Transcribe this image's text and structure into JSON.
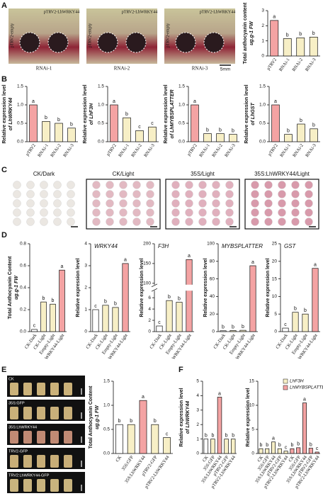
{
  "panel_letters": [
    "A",
    "B",
    "C",
    "D",
    "E",
    "F"
  ],
  "panel_a": {
    "left_label": "pTRV2-empty",
    "right_label": "pTRV2-LhWRKY44",
    "groups": [
      "RNAi-1",
      "RNAi-2",
      "RNAi-3"
    ],
    "scale": "5mm"
  },
  "panel_c": {
    "groups": [
      "CK/Dark",
      "CK/Light",
      "35S/Light",
      "35S:LhWRKY44/Light"
    ]
  },
  "panel_e": {
    "rows": [
      "CK",
      "35S:GFP",
      "35S:LhWRKY44",
      "TRV2-GFP",
      "TRV2:LhWRKY44-GFP"
    ]
  },
  "chart_data": [
    {
      "type": "bar",
      "ylabel": [
        "Total anthocyanin content",
        "ug.g-1 FW"
      ],
      "categories": [
        "pTRV2",
        "RNAi-1",
        "RNAi-2",
        "RNAi-3"
      ],
      "values": [
        2.35,
        1.15,
        1.2,
        1.25
      ],
      "letters": [
        "a",
        "b",
        "b",
        "b"
      ],
      "colors": [
        "#f4a3a3",
        "#f7efc6",
        "#f7efc6",
        "#f7efc6"
      ],
      "ylim": [
        0,
        3
      ],
      "yticks": [
        0,
        1,
        2,
        3
      ]
    },
    {
      "type": "bar",
      "ylabel": [
        "Relative expression level",
        "of LhWRKY44"
      ],
      "categories": [
        "pTRV2",
        "RNAi-1",
        "RNAi-2",
        "RNAi-3"
      ],
      "values": [
        1.0,
        0.55,
        0.5,
        0.37
      ],
      "letters": [
        "a",
        "b",
        "b",
        "b"
      ],
      "colors": [
        "#f4a3a3",
        "#f7efc6",
        "#f7efc6",
        "#f7efc6"
      ],
      "ylim": [
        0,
        1.5
      ],
      "yticks": [
        {
          "value": 0,
          "label": "0.0"
        },
        0.5,
        {
          "value": 1,
          "label": "1.0"
        },
        1.5
      ]
    },
    {
      "type": "bar",
      "ylabel": [
        "Relative expression level",
        "of LhF3H"
      ],
      "categories": [
        "pTRV2",
        "RNAi-1",
        "RNAi-2",
        "RNAi-3"
      ],
      "values": [
        1.0,
        0.65,
        0.3,
        0.4
      ],
      "letters": [
        "a",
        "b",
        "c",
        "c"
      ],
      "colors": [
        "#f4a3a3",
        "#f7efc6",
        "#f7efc6",
        "#f7efc6"
      ],
      "ylim": [
        0,
        1.5
      ],
      "yticks": [
        {
          "value": 0,
          "label": "0.0"
        },
        0.5,
        {
          "value": 1,
          "label": "1.0"
        },
        1.5
      ]
    },
    {
      "type": "bar",
      "ylabel": [
        "Relative expression level",
        "of LhMYBSPLATTER"
      ],
      "categories": [
        "pTRV2",
        "RNAi-1",
        "RNAi-2",
        "RNAi-3"
      ],
      "values": [
        1.0,
        0.22,
        0.22,
        0.2
      ],
      "letters": [
        "a",
        "b",
        "b",
        "b"
      ],
      "colors": [
        "#f4a3a3",
        "#f7efc6",
        "#f7efc6",
        "#f7efc6"
      ],
      "ylim": [
        0,
        1.5
      ],
      "yticks": [
        {
          "value": 0,
          "label": "0.0"
        },
        0.5,
        {
          "value": 1,
          "label": "1.0"
        },
        1.5
      ]
    },
    {
      "type": "bar",
      "ylabel": [
        "Relative expression level",
        "of LhGST"
      ],
      "categories": [
        "pTRV2",
        "RNAi-1",
        "RNAi-2",
        "RNAi-3"
      ],
      "values": [
        1.0,
        0.2,
        0.48,
        0.35
      ],
      "letters": [
        "a",
        "b",
        "b",
        "b"
      ],
      "colors": [
        "#f4a3a3",
        "#f7efc6",
        "#f7efc6",
        "#f7efc6"
      ],
      "ylim": [
        0,
        1.5
      ],
      "yticks": [
        {
          "value": 0,
          "label": "0.0"
        },
        0.5,
        {
          "value": 1,
          "label": "1.0"
        },
        1.5
      ]
    },
    {
      "type": "bar",
      "ylabel": [
        "Total Anthocyanin Content",
        "ug.g-1 FW"
      ],
      "categories": [
        "CK-Dark",
        "CK-Light",
        "Empty-Light",
        "WRKY44-Light"
      ],
      "values": [
        0.02,
        0.27,
        0.25,
        0.56
      ],
      "letters": [
        "c",
        "b",
        "b",
        "a"
      ],
      "colors": [
        "#ffffff",
        "#f7efc6",
        "#f7efc6",
        "#f4a3a3"
      ],
      "ylim": [
        0,
        0.8
      ],
      "yticks": [
        {
          "value": 0,
          "label": "0.0"
        },
        0.2,
        0.4,
        0.6,
        0.8
      ]
    },
    {
      "type": "bar",
      "title": "WRKY44",
      "ylabel": [
        "Relative expression level"
      ],
      "categories": [
        "CK-Dark",
        "CK-Light",
        "Empty-Light",
        "WRKY44-Light"
      ],
      "values": [
        1.0,
        1.2,
        1.1,
        3.1
      ],
      "letters": [
        "c",
        "b",
        "b",
        "a"
      ],
      "colors": [
        "#ffffff",
        "#f7efc6",
        "#f7efc6",
        "#f4a3a3"
      ],
      "ylim": [
        0,
        4
      ],
      "yticks": [
        0,
        1,
        2,
        3,
        4
      ]
    },
    {
      "type": "bar",
      "title": "F3H",
      "ylabel": [
        "Relative expression level"
      ],
      "categories": [
        "CK-Dark",
        "CK-Light",
        "Empty-Light",
        "WRKY44-Light"
      ],
      "values": [
        1.0,
        5.5,
        5.2,
        160
      ],
      "letters": [
        "c",
        "b",
        "b",
        "a"
      ],
      "colors": [
        "#ffffff",
        "#f7efc6",
        "#f7efc6",
        "#f4a3a3"
      ],
      "ylim": [
        0,
        200
      ],
      "axis_break": [
        7,
        100
      ],
      "yticks": [
        0,
        2,
        4,
        6,
        100,
        150,
        200
      ]
    },
    {
      "type": "bar",
      "title": "MYBSPLATTER",
      "ylabel": [
        "Relative expression level"
      ],
      "categories": [
        "CK-Dark",
        "CK-Light",
        "Empty-Light",
        "WRKY44-Light"
      ],
      "values": [
        1.0,
        1.2,
        1.5,
        75
      ],
      "letters": [
        "b",
        "b",
        "b",
        "a"
      ],
      "colors": [
        "#ffffff",
        "#f7efc6",
        "#f7efc6",
        "#f4a3a3"
      ],
      "ylim": [
        0,
        100
      ],
      "yticks": [
        0,
        20,
        40,
        60,
        80,
        100
      ]
    },
    {
      "type": "bar",
      "title": "GST",
      "ylabel": [
        "Relative expression level"
      ],
      "categories": [
        "CK-Dark",
        "CK-Light",
        "Empty-Light",
        "WRKY44-Light"
      ],
      "values": [
        1.0,
        5.5,
        5.0,
        18
      ],
      "letters": [
        "c",
        "b",
        "b",
        "a"
      ],
      "colors": [
        "#ffffff",
        "#f7efc6",
        "#f7efc6",
        "#f4a3a3"
      ],
      "ylim": [
        0,
        25
      ],
      "yticks": [
        0,
        5,
        10,
        15,
        20,
        25
      ]
    },
    {
      "type": "bar",
      "ylabel": [
        "Total Anthocyanin Content",
        "ug.g-1 FW"
      ],
      "categories": [
        "CK",
        "35S:GFP",
        "35S:LhWRKY44",
        "pTRV2-GFP",
        "pTRV2-LhWRKY44"
      ],
      "values": [
        0.6,
        0.6,
        1.1,
        0.6,
        0.33
      ],
      "letters": [
        "b",
        "b",
        "a",
        "b",
        "c"
      ],
      "colors": [
        "#ffffff",
        "#f7efc6",
        "#f4a3a3",
        "#f7efc6",
        "#f7efc6"
      ],
      "ylim": [
        0,
        1.5
      ],
      "yticks": [
        {
          "value": 0,
          "label": "0.0"
        },
        0.5,
        {
          "value": 1,
          "label": "1.0"
        },
        1.5
      ]
    },
    {
      "type": "bar",
      "ylabel": [
        "Relative expression level",
        "of LhWRKY44"
      ],
      "categories": [
        "CK",
        "35S:GFP",
        "35S:LhWRKY44",
        "pTRV2-GFP",
        "pTRV2-LhWRKY44"
      ],
      "values": [
        1.0,
        1.0,
        3.9,
        1.0,
        1.0
      ],
      "letters": [
        "b",
        "b",
        "a",
        "b",
        "b"
      ],
      "colors": [
        "#ffffff",
        "#f7efc6",
        "#f4a3a3",
        "#f7efc6",
        "#f7efc6"
      ],
      "ylim": [
        0,
        5
      ],
      "yticks": [
        0,
        1,
        2,
        3,
        4,
        5
      ]
    },
    {
      "type": "bar",
      "ylabel": [
        "Relative expression level"
      ],
      "categories": [
        "CK",
        "35S:GFP",
        "35S:LhWRKY44",
        "pTRV2-GFP",
        "pTRV2-LhWRKY44",
        "CK",
        "35S:GFP",
        "35S:LhWRKY44",
        "pTRV2-GFP",
        "pTRV2-LhWRKY44"
      ],
      "series": [
        {
          "name": "LhF3H",
          "color": "#f7efc6",
          "values": [
            1.0,
            1.0,
            2.4,
            1.0,
            0.5,
            null,
            null,
            null,
            null,
            null
          ],
          "letters": [
            "b",
            "b",
            "a",
            "b",
            "c",
            null,
            null,
            null,
            null,
            null
          ]
        },
        {
          "name": "LhMYBSPLATTER",
          "color": "#f4a3a3",
          "values": [
            null,
            null,
            null,
            null,
            null,
            1.0,
            1.2,
            10.5,
            1.1,
            0.3
          ],
          "letters": [
            null,
            null,
            null,
            null,
            null,
            "b",
            "b",
            "a",
            "b",
            "c"
          ]
        }
      ],
      "legend": "top-right",
      "ylim": [
        0,
        15
      ],
      "yticks": [
        0,
        5,
        10,
        15
      ]
    }
  ]
}
